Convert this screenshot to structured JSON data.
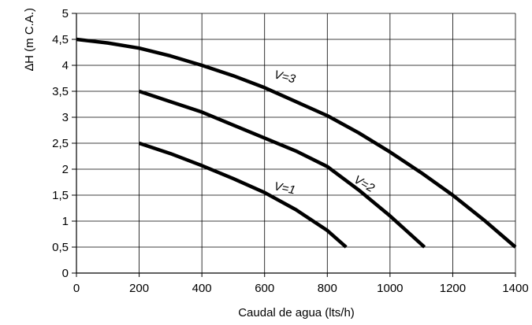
{
  "chart_data": {
    "type": "line",
    "xlabel": "Caudal de agua (lts/h)",
    "ylabel": "∆H (m C.A.)",
    "xlim": [
      0,
      1400
    ],
    "ylim": [
      0,
      5
    ],
    "x_ticks": [
      0,
      200,
      400,
      600,
      800,
      1000,
      1200,
      1400
    ],
    "x_tick_labels": [
      "0",
      "200",
      "400",
      "600",
      "800",
      "1000",
      "1200",
      "1400"
    ],
    "y_ticks": [
      0,
      0.5,
      1,
      1.5,
      2,
      2.5,
      3,
      3.5,
      4,
      4.5,
      5
    ],
    "y_tick_labels": [
      "0",
      "0,5",
      "1",
      "1,5",
      "2",
      "2,5",
      "3",
      "3,5",
      "4",
      "4,5",
      "5"
    ],
    "grid": true,
    "series": [
      {
        "name": "V=1",
        "x": [
          200,
          300,
          400,
          500,
          600,
          700,
          800,
          860
        ],
        "y": [
          2.5,
          2.3,
          2.07,
          1.82,
          1.55,
          1.22,
          0.82,
          0.5
        ]
      },
      {
        "name": "V=2",
        "x": [
          200,
          300,
          400,
          500,
          600,
          700,
          800,
          900,
          1000,
          1110
        ],
        "y": [
          3.5,
          3.3,
          3.1,
          2.85,
          2.6,
          2.35,
          2.05,
          1.6,
          1.1,
          0.5
        ]
      },
      {
        "name": "V=3",
        "x": [
          0,
          100,
          200,
          300,
          400,
          500,
          600,
          700,
          800,
          900,
          1000,
          1100,
          1200,
          1300,
          1400
        ],
        "y": [
          4.5,
          4.43,
          4.33,
          4.18,
          4.0,
          3.8,
          3.57,
          3.3,
          3.03,
          2.7,
          2.33,
          1.93,
          1.5,
          1.02,
          0.5
        ]
      }
    ]
  }
}
